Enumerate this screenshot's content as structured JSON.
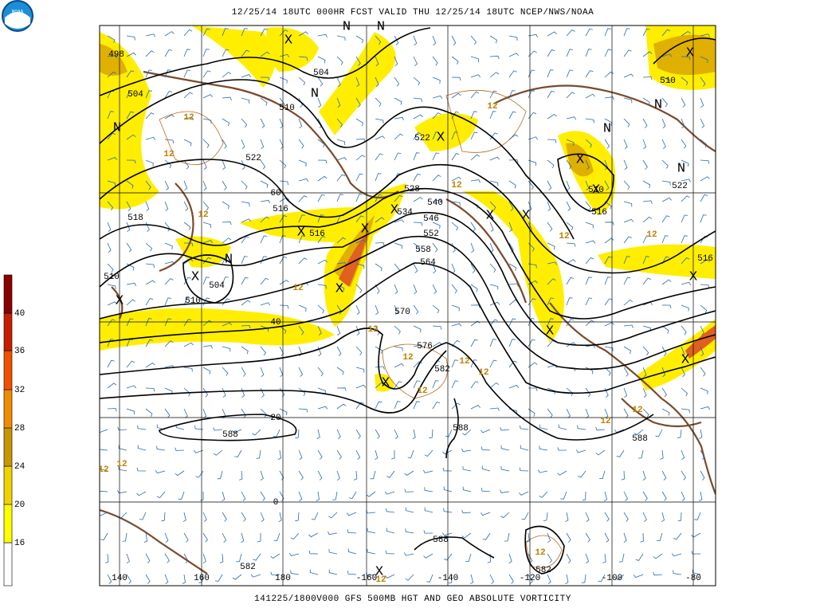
{
  "header": {
    "title": "12/25/14 18UTC  000HR  FCST VALID THU 12/25/14 18UTC  NCEP/NWS/NOAA",
    "footer": "141225/1800V000 GFS 500MB HGT AND GEO ABSOLUTE VORTICITY",
    "logo": "NOAA"
  },
  "colorbar": {
    "ticks": [
      16,
      20,
      24,
      28,
      32,
      36,
      40
    ],
    "colors": [
      "#ffff00",
      "#f0d200",
      "#c89600",
      "#f08c00",
      "#f05000",
      "#c81e00",
      "#8b0000"
    ]
  },
  "lon_labels": [
    140,
    160,
    180,
    -160,
    -140,
    -120,
    -100,
    -80
  ],
  "lat_labels": [
    60,
    40,
    20,
    0
  ],
  "height_labels": [
    504,
    498,
    504,
    510,
    522,
    516,
    518,
    516,
    504,
    510,
    510,
    522,
    528,
    534,
    540,
    546,
    552,
    558,
    564,
    570,
    576,
    582,
    588,
    588,
    588,
    588,
    582,
    582,
    510,
    510,
    516,
    522,
    516
  ],
  "vorticity_labels": [
    12,
    12,
    12,
    12,
    12,
    12,
    12,
    12,
    12,
    12,
    12,
    12,
    12,
    12,
    12,
    12,
    12,
    12,
    12
  ],
  "symbols": [
    "X",
    "X",
    "X",
    "X",
    "X",
    "X",
    "X",
    "X",
    "X",
    "X",
    "X",
    "X",
    "X",
    "X",
    "X",
    "X",
    "X",
    "X",
    "N",
    "N",
    "N",
    "N",
    "N",
    "N",
    "N",
    "N"
  ]
}
